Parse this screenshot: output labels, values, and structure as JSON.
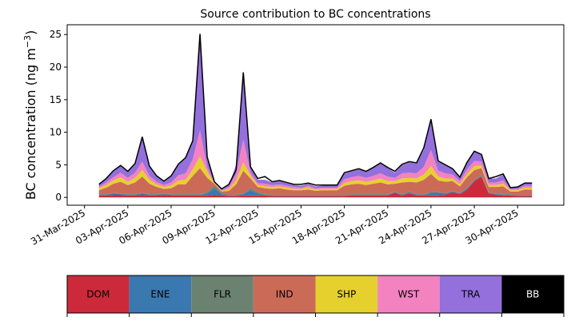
{
  "chart_data": {
    "type": "area",
    "title": "Source contribution to BC concentrations",
    "ylabel": "BC concentration (ng m",
    "ylabel_sup": "−3",
    "ylabel_close": ")",
    "xlabel": "",
    "ylim": [
      -1.2,
      26.5
    ],
    "yticks": [
      0,
      5,
      10,
      15,
      20,
      25
    ],
    "ytick_labels": [
      "0",
      "5",
      "10",
      "15",
      "20",
      "25"
    ],
    "xlim_days": [
      -1.2,
      33.2
    ],
    "xticks_days": [
      0,
      3,
      6,
      9,
      12,
      15,
      18,
      21,
      24,
      27,
      30
    ],
    "xtick_labels": [
      "31-Mar-2025",
      "03-Apr-2025",
      "06-Apr-2025",
      "09-Apr-2025",
      "12-Apr-2025",
      "15-Apr-2025",
      "18-Apr-2025",
      "21-Apr-2025",
      "24-Apr-2025",
      "27-Apr-2025",
      "30-Apr-2025"
    ],
    "stack_order": [
      "DOM",
      "ENE",
      "FLR",
      "IND",
      "SHP",
      "WST",
      "TRA"
    ],
    "total_series": "BB",
    "legend": [
      {
        "key": "DOM",
        "color": "#cc2a3a",
        "text_color": "#000000"
      },
      {
        "key": "ENE",
        "color": "#3a78b0",
        "text_color": "#000000"
      },
      {
        "key": "FLR",
        "color": "#6b8270",
        "text_color": "#000000"
      },
      {
        "key": "IND",
        "color": "#cc6a58",
        "text_color": "#000000"
      },
      {
        "key": "SHP",
        "color": "#e6d02e",
        "text_color": "#000000"
      },
      {
        "key": "WST",
        "color": "#f282c0",
        "text_color": "#000000"
      },
      {
        "key": "TRA",
        "color": "#9370db",
        "text_color": "#000000"
      },
      {
        "key": "BB",
        "color": "#000000",
        "text_color": "#ffffff"
      }
    ],
    "series": {
      "day": [
        1.0,
        1.5,
        2.0,
        2.5,
        3.0,
        3.5,
        4.0,
        4.5,
        5.0,
        5.5,
        6.0,
        6.5,
        7.0,
        7.5,
        8.0,
        8.5,
        9.0,
        9.5,
        10.0,
        10.5,
        11.0,
        11.5,
        12.0,
        12.5,
        13.0,
        13.5,
        14.0,
        14.5,
        15.0,
        15.5,
        16.0,
        16.5,
        17.0,
        17.5,
        18.0,
        18.5,
        19.0,
        19.5,
        20.0,
        20.5,
        21.0,
        21.5,
        22.0,
        22.5,
        23.0,
        23.5,
        24.0,
        24.5,
        25.0,
        25.5,
        26.0,
        26.5,
        27.0,
        27.5,
        28.0,
        28.5,
        29.0,
        29.5,
        30.0,
        30.5,
        31.0
      ],
      "DOM": [
        0.3,
        0.3,
        0.4,
        0.4,
        0.3,
        0.3,
        0.4,
        0.3,
        0.3,
        0.4,
        0.3,
        0.3,
        0.3,
        0.3,
        0.3,
        0.3,
        0.4,
        0.3,
        0.2,
        0.2,
        0.3,
        0.3,
        0.3,
        0.3,
        0.2,
        0.2,
        0.2,
        0.2,
        0.2,
        0.2,
        0.2,
        0.2,
        0.2,
        0.2,
        0.2,
        0.3,
        0.3,
        0.3,
        0.3,
        0.3,
        0.3,
        0.7,
        0.3,
        0.6,
        0.3,
        0.3,
        0.3,
        0.3,
        0.4,
        0.8,
        0.5,
        1.2,
        2.5,
        3.2,
        0.6,
        0.4,
        0.3,
        0.3,
        0.2,
        0.2,
        0.2
      ],
      "ENE": [
        0.1,
        0.1,
        0.2,
        0.1,
        0.1,
        0.1,
        0.2,
        0.1,
        0.1,
        0.1,
        0.1,
        0.1,
        0.1,
        0.1,
        0.1,
        0.3,
        1.0,
        0.2,
        0.1,
        0.1,
        0.2,
        0.8,
        0.3,
        0.1,
        0.1,
        0.1,
        0.1,
        0.1,
        0.1,
        0.1,
        0.1,
        0.1,
        0.1,
        0.1,
        0.1,
        0.1,
        0.1,
        0.1,
        0.1,
        0.1,
        0.1,
        0.1,
        0.1,
        0.2,
        0.1,
        0.1,
        0.4,
        0.4,
        0.2,
        0.1,
        0.1,
        0.2,
        0.1,
        0.1,
        0.1,
        0.1,
        0.1,
        0.1,
        0.1,
        0.1,
        0.1
      ],
      "FLR": [
        0.1,
        0.1,
        0.1,
        0.1,
        0.1,
        0.1,
        0.1,
        0.1,
        0.1,
        0.1,
        0.1,
        0.1,
        0.1,
        0.1,
        0.1,
        0.2,
        0.4,
        0.2,
        0.1,
        0.1,
        0.1,
        0.3,
        0.2,
        0.1,
        0.1,
        0.1,
        0.1,
        0.1,
        0.1,
        0.1,
        0.1,
        0.1,
        0.1,
        0.1,
        0.1,
        0.1,
        0.1,
        0.1,
        0.1,
        0.1,
        0.1,
        0.1,
        0.1,
        0.1,
        0.1,
        0.1,
        0.1,
        0.1,
        0.1,
        0.1,
        0.1,
        0.1,
        0.1,
        0.1,
        0.1,
        0.1,
        0.1,
        0.1,
        0.1,
        0.1,
        0.1
      ],
      "IND": [
        0.6,
        1.0,
        1.4,
        1.8,
        1.4,
        1.8,
        2.5,
        1.6,
        1.1,
        0.7,
        0.9,
        1.5,
        1.5,
        2.8,
        4.0,
        2.2,
        0.3,
        0.2,
        0.6,
        1.6,
        3.5,
        1.5,
        0.8,
        0.9,
        0.9,
        1.0,
        0.8,
        0.7,
        0.7,
        0.8,
        0.6,
        0.7,
        0.7,
        0.7,
        1.4,
        1.5,
        1.6,
        1.4,
        1.6,
        1.8,
        1.5,
        1.2,
        1.8,
        1.5,
        1.8,
        2.2,
        2.8,
        1.8,
        1.7,
        1.5,
        1.0,
        1.6,
        1.5,
        1.1,
        0.8,
        1.0,
        1.2,
        0.4,
        0.5,
        0.8,
        0.8
      ],
      "SHP": [
        0.3,
        0.4,
        0.5,
        0.7,
        0.5,
        0.7,
        1.0,
        0.6,
        0.4,
        0.3,
        0.4,
        0.6,
        0.7,
        1.0,
        1.8,
        1.0,
        0.1,
        0.1,
        0.3,
        0.6,
        1.3,
        0.5,
        0.3,
        0.3,
        0.3,
        0.3,
        0.3,
        0.2,
        0.2,
        0.3,
        0.2,
        0.2,
        0.2,
        0.2,
        0.4,
        0.5,
        0.5,
        0.5,
        0.5,
        0.6,
        0.5,
        0.4,
        0.6,
        0.6,
        0.6,
        0.8,
        1.2,
        0.6,
        0.5,
        0.4,
        0.3,
        0.5,
        0.6,
        0.4,
        0.3,
        0.3,
        0.4,
        0.2,
        0.2,
        0.3,
        0.3
      ],
      "WST": [
        0.2,
        0.4,
        0.5,
        0.7,
        0.6,
        0.8,
        1.3,
        0.6,
        0.4,
        0.3,
        0.5,
        0.8,
        1.0,
        1.6,
        4.0,
        0.6,
        0.0,
        0.1,
        0.3,
        1.0,
        3.5,
        0.4,
        0.3,
        0.4,
        0.3,
        0.3,
        0.3,
        0.3,
        0.2,
        0.3,
        0.2,
        0.2,
        0.2,
        0.2,
        0.6,
        0.6,
        0.7,
        0.6,
        0.7,
        0.8,
        0.7,
        0.5,
        0.8,
        0.8,
        0.8,
        1.2,
        2.5,
        0.9,
        0.8,
        0.6,
        0.5,
        0.7,
        0.8,
        0.6,
        0.4,
        0.4,
        0.5,
        0.2,
        0.2,
        0.3,
        0.3
      ],
      "TRA": [
        0.3,
        0.5,
        0.9,
        1.0,
        0.9,
        1.3,
        3.8,
        1.4,
        0.8,
        0.5,
        0.9,
        1.6,
        2.3,
        2.7,
        14.8,
        1.5,
        0.1,
        0.1,
        0.3,
        1.4,
        10.0,
        0.8,
        0.5,
        0.6,
        0.4,
        0.5,
        0.4,
        0.3,
        0.3,
        0.3,
        0.3,
        0.3,
        0.3,
        0.3,
        0.9,
        0.9,
        1.0,
        1.0,
        1.2,
        1.5,
        1.3,
        0.8,
        1.3,
        1.6,
        1.5,
        2.6,
        4.6,
        1.4,
        1.2,
        0.8,
        0.5,
        1.0,
        1.5,
        1.0,
        0.6,
        0.6,
        0.9,
        0.2,
        0.3,
        0.4,
        0.4
      ],
      "BB": [
        2.0,
        2.9,
        4.1,
        4.9,
        4.0,
        5.2,
        9.3,
        4.8,
        3.3,
        2.5,
        3.3,
        5.1,
        6.1,
        8.7,
        25.1,
        6.2,
        2.4,
        1.3,
        2.0,
        4.2,
        19.2,
        4.7,
        2.9,
        3.2,
        2.4,
        2.6,
        2.3,
        2.0,
        2.0,
        2.2,
        1.9,
        1.9,
        1.9,
        1.9,
        3.8,
        4.1,
        4.4,
        4.0,
        4.6,
        5.3,
        4.6,
        4.0,
        5.1,
        5.5,
        5.3,
        7.6,
        12.0,
        5.6,
        5.0,
        4.4,
        3.1,
        5.4,
        7.1,
        6.6,
        2.9,
        3.2,
        3.6,
        1.5,
        1.6,
        2.2,
        2.2
      ]
    }
  }
}
